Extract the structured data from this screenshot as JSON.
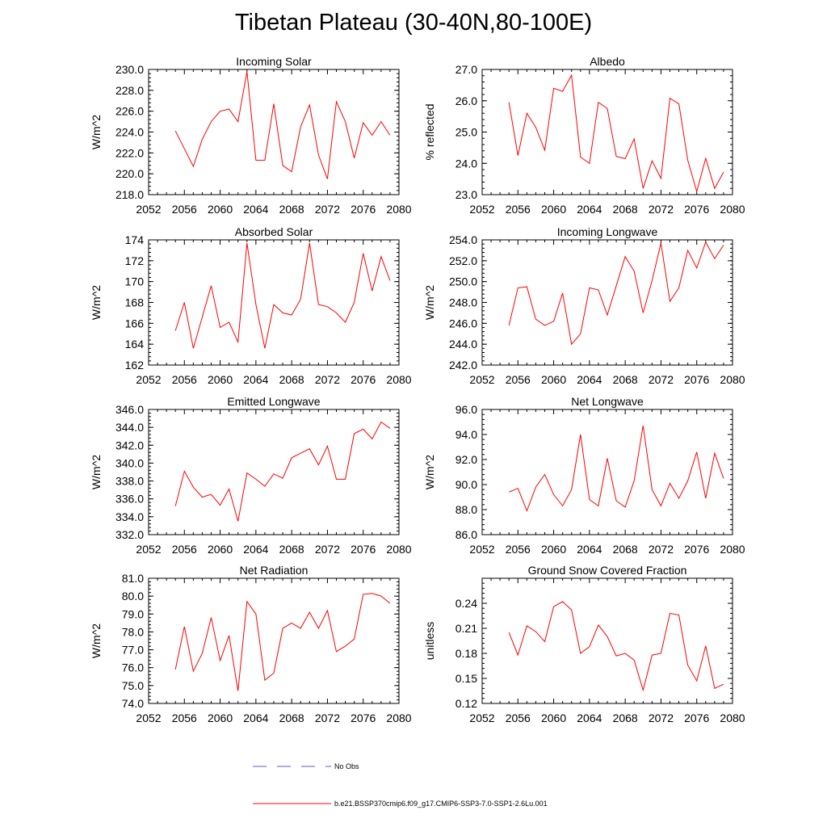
{
  "title": "Tibetan Plateau (30-40N,80-100E)",
  "legend": [
    {
      "label": "No Obs",
      "color": "#5a5ac8",
      "style": "dashed"
    },
    {
      "label": "b.e21.BSSP370cmip6.f09_g17.CMIP6-SSP3-7.0-SSP1-2.6Lu.001",
      "color": "#ff0000",
      "style": "solid"
    }
  ],
  "chart_data": [
    {
      "type": "line",
      "title": "Incoming Solar",
      "xlabel": "",
      "ylabel": "W/m^2",
      "xlim": [
        2052,
        2080
      ],
      "ylim": [
        218.0,
        230.0
      ],
      "xticks": [
        2052,
        2056,
        2060,
        2064,
        2068,
        2072,
        2076,
        2080
      ],
      "yticks": [
        218.0,
        220.0,
        222.0,
        224.0,
        226.0,
        228.0,
        230.0
      ],
      "ydecimals": 1,
      "color": "#ff0000",
      "x": [
        2055,
        2056,
        2057,
        2058,
        2059,
        2060,
        2061,
        2062,
        2063,
        2064,
        2065,
        2066,
        2067,
        2068,
        2069,
        2070,
        2071,
        2072,
        2073,
        2074,
        2075,
        2076,
        2077,
        2078,
        2079
      ],
      "values": [
        224.1,
        222.4,
        220.7,
        223.3,
        225.0,
        226.0,
        226.2,
        225.0,
        229.8,
        221.3,
        221.3,
        226.7,
        220.8,
        220.2,
        224.5,
        226.6,
        221.8,
        219.5,
        226.9,
        225.0,
        221.5,
        224.9,
        223.7,
        225.0,
        223.7
      ]
    },
    {
      "type": "line",
      "title": "Albedo",
      "xlabel": "",
      "ylabel": "% reflected",
      "xlim": [
        2052,
        2080
      ],
      "ylim": [
        23.0,
        27.0
      ],
      "xticks": [
        2052,
        2056,
        2060,
        2064,
        2068,
        2072,
        2076,
        2080
      ],
      "yticks": [
        23.0,
        24.0,
        25.0,
        26.0,
        27.0
      ],
      "ydecimals": 1,
      "color": "#ff0000",
      "x": [
        2055,
        2056,
        2057,
        2058,
        2059,
        2060,
        2061,
        2062,
        2063,
        2064,
        2065,
        2066,
        2067,
        2068,
        2069,
        2070,
        2071,
        2072,
        2073,
        2074,
        2075,
        2076,
        2077,
        2078,
        2079
      ],
      "values": [
        25.95,
        24.25,
        25.6,
        25.15,
        24.42,
        26.4,
        26.3,
        26.82,
        24.2,
        24.0,
        25.95,
        25.75,
        24.22,
        24.15,
        24.78,
        23.2,
        24.08,
        23.52,
        26.08,
        25.9,
        24.1,
        23.1,
        24.16,
        23.2,
        23.72
      ]
    },
    {
      "type": "line",
      "title": "Absorbed Solar",
      "xlabel": "",
      "ylabel": "W/m^2",
      "xlim": [
        2052,
        2080
      ],
      "ylim": [
        162,
        174
      ],
      "xticks": [
        2052,
        2056,
        2060,
        2064,
        2068,
        2072,
        2076,
        2080
      ],
      "yticks": [
        162,
        164,
        166,
        168,
        170,
        172,
        174
      ],
      "ydecimals": 0,
      "color": "#ff0000",
      "x": [
        2055,
        2056,
        2057,
        2058,
        2059,
        2060,
        2061,
        2062,
        2063,
        2064,
        2065,
        2066,
        2067,
        2068,
        2069,
        2070,
        2071,
        2072,
        2073,
        2074,
        2075,
        2076,
        2077,
        2078,
        2079
      ],
      "values": [
        165.3,
        168.0,
        163.6,
        166.6,
        169.6,
        165.6,
        166.1,
        164.2,
        173.7,
        167.8,
        163.6,
        167.8,
        167.0,
        166.8,
        168.3,
        173.7,
        167.8,
        167.6,
        167.0,
        166.1,
        168.0,
        172.7,
        169.1,
        172.4,
        170.1
      ]
    },
    {
      "type": "line",
      "title": "Incoming Longwave",
      "xlabel": "",
      "ylabel": "W/m^2",
      "xlim": [
        2052,
        2080
      ],
      "ylim": [
        242.0,
        254.0
      ],
      "xticks": [
        2052,
        2056,
        2060,
        2064,
        2068,
        2072,
        2076,
        2080
      ],
      "yticks": [
        242.0,
        244.0,
        246.0,
        248.0,
        250.0,
        252.0,
        254.0
      ],
      "ydecimals": 1,
      "color": "#ff0000",
      "x": [
        2055,
        2056,
        2057,
        2058,
        2059,
        2060,
        2061,
        2062,
        2063,
        2064,
        2065,
        2066,
        2067,
        2068,
        2069,
        2070,
        2071,
        2072,
        2073,
        2074,
        2075,
        2076,
        2077,
        2078,
        2079
      ],
      "values": [
        245.8,
        249.4,
        249.5,
        246.4,
        245.8,
        246.2,
        248.9,
        244.0,
        245.0,
        249.4,
        249.2,
        246.8,
        249.6,
        252.4,
        251.0,
        247.0,
        250.1,
        253.7,
        248.1,
        249.4,
        253.0,
        251.3,
        253.8,
        252.2,
        253.5
      ]
    },
    {
      "type": "line",
      "title": "Emitted Longwave",
      "xlabel": "",
      "ylabel": "W/m^2",
      "xlim": [
        2052,
        2080
      ],
      "ylim": [
        332.0,
        346.0
      ],
      "xticks": [
        2052,
        2056,
        2060,
        2064,
        2068,
        2072,
        2076,
        2080
      ],
      "yticks": [
        332.0,
        334.0,
        336.0,
        338.0,
        340.0,
        342.0,
        344.0,
        346.0
      ],
      "ydecimals": 1,
      "color": "#ff0000",
      "x": [
        2055,
        2056,
        2057,
        2058,
        2059,
        2060,
        2061,
        2062,
        2063,
        2064,
        2065,
        2066,
        2067,
        2068,
        2069,
        2070,
        2071,
        2072,
        2073,
        2074,
        2075,
        2076,
        2077,
        2078,
        2079
      ],
      "values": [
        335.2,
        339.1,
        337.3,
        336.2,
        336.5,
        335.3,
        337.1,
        333.5,
        338.9,
        338.2,
        337.4,
        338.8,
        338.3,
        340.6,
        341.1,
        341.6,
        339.8,
        341.9,
        338.2,
        338.2,
        343.3,
        343.8,
        342.7,
        344.6,
        343.9
      ]
    },
    {
      "type": "line",
      "title": "Net Longwave",
      "xlabel": "",
      "ylabel": "W/m^2",
      "xlim": [
        2052,
        2080
      ],
      "ylim": [
        86.0,
        96.0
      ],
      "xticks": [
        2052,
        2056,
        2060,
        2064,
        2068,
        2072,
        2076,
        2080
      ],
      "yticks": [
        86.0,
        88.0,
        90.0,
        92.0,
        94.0,
        96.0
      ],
      "ydecimals": 1,
      "color": "#ff0000",
      "x": [
        2055,
        2056,
        2057,
        2058,
        2059,
        2060,
        2061,
        2062,
        2063,
        2064,
        2065,
        2066,
        2067,
        2068,
        2069,
        2070,
        2071,
        2072,
        2073,
        2074,
        2075,
        2076,
        2077,
        2078,
        2079
      ],
      "values": [
        89.4,
        89.7,
        87.9,
        89.8,
        90.8,
        89.2,
        88.3,
        89.6,
        94.0,
        88.8,
        88.3,
        92.1,
        88.7,
        88.2,
        90.3,
        94.7,
        89.6,
        88.3,
        90.1,
        88.9,
        90.3,
        92.6,
        88.9,
        92.5,
        90.5
      ]
    },
    {
      "type": "line",
      "title": "Net Radiation",
      "xlabel": "",
      "ylabel": "W/m^2",
      "xlim": [
        2052,
        2080
      ],
      "ylim": [
        74.0,
        81.0
      ],
      "xticks": [
        2052,
        2056,
        2060,
        2064,
        2068,
        2072,
        2076,
        2080
      ],
      "yticks": [
        74.0,
        75.0,
        76.0,
        77.0,
        78.0,
        79.0,
        80.0,
        81.0
      ],
      "ydecimals": 1,
      "color": "#ff0000",
      "x": [
        2055,
        2056,
        2057,
        2058,
        2059,
        2060,
        2061,
        2062,
        2063,
        2064,
        2065,
        2066,
        2067,
        2068,
        2069,
        2070,
        2071,
        2072,
        2073,
        2074,
        2075,
        2076,
        2077,
        2078,
        2079
      ],
      "values": [
        75.9,
        78.3,
        75.8,
        76.8,
        78.8,
        76.4,
        77.8,
        74.7,
        79.7,
        79.0,
        75.3,
        75.7,
        78.2,
        78.5,
        78.2,
        79.1,
        78.2,
        79.2,
        76.9,
        77.2,
        77.6,
        80.1,
        80.15,
        80.0,
        79.6
      ]
    },
    {
      "type": "line",
      "title": "Ground Snow Covered Fraction",
      "xlabel": "",
      "ylabel": "unitless",
      "xlim": [
        2052,
        2080
      ],
      "ylim": [
        0.12,
        0.27
      ],
      "xticks": [
        2052,
        2056,
        2060,
        2064,
        2068,
        2072,
        2076,
        2080
      ],
      "yticks": [
        0.12,
        0.15,
        0.18,
        0.21,
        0.24
      ],
      "ydecimals": 2,
      "color": "#ff0000",
      "x": [
        2055,
        2056,
        2057,
        2058,
        2059,
        2060,
        2061,
        2062,
        2063,
        2064,
        2065,
        2066,
        2067,
        2068,
        2069,
        2070,
        2071,
        2072,
        2073,
        2074,
        2075,
        2076,
        2077,
        2078,
        2079
      ],
      "values": [
        0.205,
        0.178,
        0.213,
        0.206,
        0.194,
        0.236,
        0.242,
        0.232,
        0.18,
        0.188,
        0.214,
        0.2,
        0.177,
        0.18,
        0.172,
        0.136,
        0.178,
        0.18,
        0.228,
        0.226,
        0.166,
        0.147,
        0.189,
        0.138,
        0.143
      ]
    }
  ]
}
